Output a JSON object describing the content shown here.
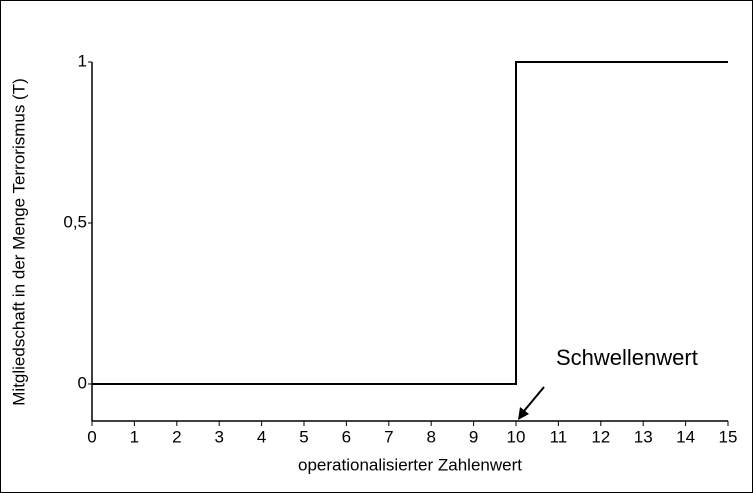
{
  "chart_data": {
    "type": "line",
    "x_label": "operationalisierter Zahlenwert",
    "y_label": "Mitgliedschaft in der Menge Terrorismus (T)",
    "x": [
      0,
      10,
      10,
      15
    ],
    "series": [
      {
        "color": "#000000",
        "values": [
          0,
          0,
          1,
          1
        ]
      }
    ],
    "xlim": [
      0,
      15
    ],
    "xticks": [
      0,
      1,
      2,
      3,
      4,
      5,
      6,
      7,
      8,
      9,
      10,
      11,
      12,
      13,
      14,
      15
    ],
    "ylim": [
      -0.115,
      1
    ],
    "yticks": [
      0,
      {
        "value": 0.5,
        "label": "0,5"
      },
      1
    ],
    "annotations": [
      {
        "text": "Schwellenwert",
        "x": 10
      }
    ]
  }
}
